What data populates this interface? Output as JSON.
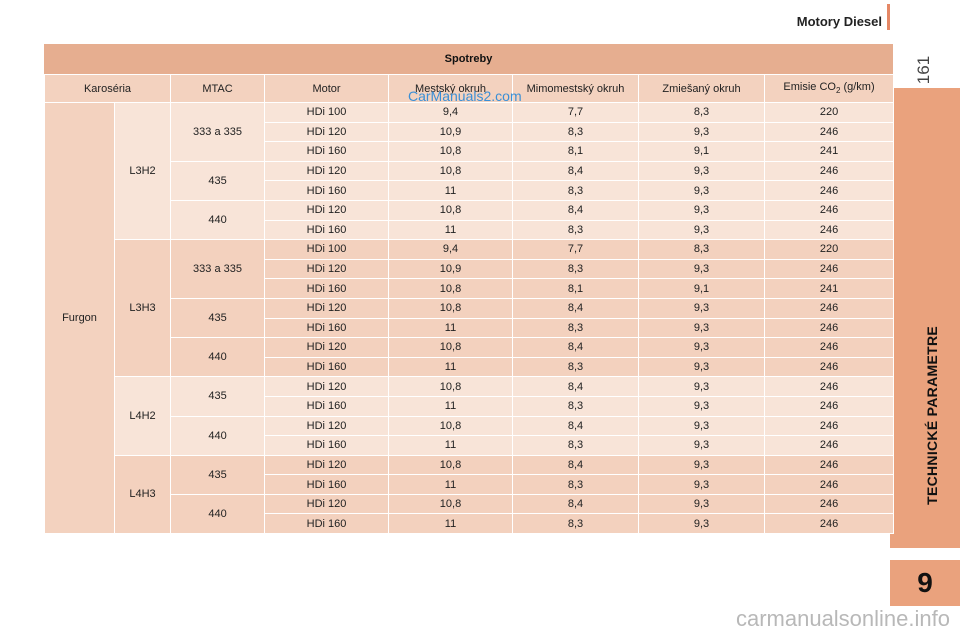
{
  "header": {
    "section_title": "Motory Diesel",
    "page_number": "161"
  },
  "side": {
    "chapter_label": "TECHNICKÉ PARAMETRE",
    "chapter_number": "9"
  },
  "table": {
    "title": "Spotreby",
    "columns": [
      "Karoséria",
      "MTAC",
      "Motor",
      "Mestský okruh",
      "Mimomestský okruh",
      "Zmiešaný okruh",
      "Emisie CO",
      "2",
      " (g/km)"
    ],
    "body_label": "Furgon",
    "groups": [
      {
        "variant": "L3H2",
        "subgroups": [
          {
            "mtac": "333 a 335",
            "rows": [
              [
                "HDi 100",
                "9,4",
                "7,7",
                "8,3",
                "220"
              ],
              [
                "HDi 120",
                "10,9",
                "8,3",
                "9,3",
                "246"
              ],
              [
                "HDi 160",
                "10,8",
                "8,1",
                "9,1",
                "241"
              ]
            ]
          },
          {
            "mtac": "435",
            "rows": [
              [
                "HDi 120",
                "10,8",
                "8,4",
                "9,3",
                "246"
              ],
              [
                "HDi 160",
                "11",
                "8,3",
                "9,3",
                "246"
              ]
            ]
          },
          {
            "mtac": "440",
            "rows": [
              [
                "HDi 120",
                "10,8",
                "8,4",
                "9,3",
                "246"
              ],
              [
                "HDi 160",
                "11",
                "8,3",
                "9,3",
                "246"
              ]
            ]
          }
        ]
      },
      {
        "variant": "L3H3",
        "subgroups": [
          {
            "mtac": "333 a 335",
            "rows": [
              [
                "HDi 100",
                "9,4",
                "7,7",
                "8,3",
                "220"
              ],
              [
                "HDi 120",
                "10,9",
                "8,3",
                "9,3",
                "246"
              ],
              [
                "HDi 160",
                "10,8",
                "8,1",
                "9,1",
                "241"
              ]
            ]
          },
          {
            "mtac": "435",
            "rows": [
              [
                "HDi 120",
                "10,8",
                "8,4",
                "9,3",
                "246"
              ],
              [
                "HDi 160",
                "11",
                "8,3",
                "9,3",
                "246"
              ]
            ]
          },
          {
            "mtac": "440",
            "rows": [
              [
                "HDi 120",
                "10,8",
                "8,4",
                "9,3",
                "246"
              ],
              [
                "HDi 160",
                "11",
                "8,3",
                "9,3",
                "246"
              ]
            ]
          }
        ]
      },
      {
        "variant": "L4H2",
        "subgroups": [
          {
            "mtac": "435",
            "rows": [
              [
                "HDi 120",
                "10,8",
                "8,4",
                "9,3",
                "246"
              ],
              [
                "HDi 160",
                "11",
                "8,3",
                "9,3",
                "246"
              ]
            ]
          },
          {
            "mtac": "440",
            "rows": [
              [
                "HDi 120",
                "10,8",
                "8,4",
                "9,3",
                "246"
              ],
              [
                "HDi 160",
                "11",
                "8,3",
                "9,3",
                "246"
              ]
            ]
          }
        ]
      },
      {
        "variant": "L4H3",
        "subgroups": [
          {
            "mtac": "435",
            "rows": [
              [
                "HDi 120",
                "10,8",
                "8,4",
                "9,3",
                "246"
              ],
              [
                "HDi 160",
                "11",
                "8,3",
                "9,3",
                "246"
              ]
            ]
          },
          {
            "mtac": "440",
            "rows": [
              [
                "HDi 120",
                "10,8",
                "8,4",
                "9,3",
                "246"
              ],
              [
                "HDi 160",
                "11",
                "8,3",
                "9,3",
                "246"
              ]
            ]
          }
        ]
      }
    ]
  },
  "watermarks": {
    "top": "CarManuals2.com",
    "bottom": "carmanualsonline.info"
  },
  "colors": {
    "accent": "#eaa27d",
    "title_bar": "#e6ae90",
    "row_light": "#f8e4d8",
    "row_dark": "#f3d1be",
    "watermark_blue": "#3a8fd6"
  }
}
